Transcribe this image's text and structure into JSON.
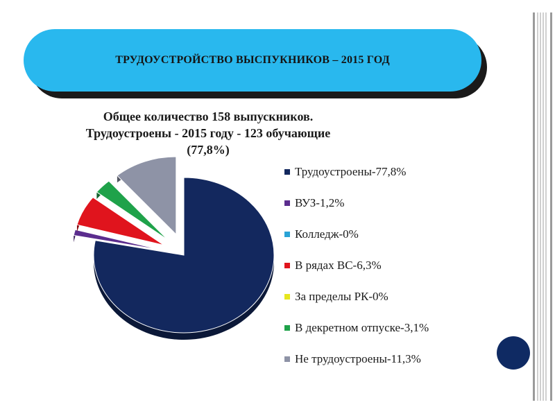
{
  "banner": {
    "title": "ТРУДОУСТРОЙСТВО ВЫСПУКНИКОВ – 2015 ГОД"
  },
  "chart_data": {
    "type": "pie",
    "title_lines": [
      "Общее количество 158 выпускников.",
      "Трудоустроены - 2015 году - 123 обучающие",
      "(77,8%)"
    ],
    "slices": [
      {
        "label": "Трудоустроены-77,8%",
        "value": 77.8,
        "color": "#13285e"
      },
      {
        "label": "ВУЗ-1,2%",
        "value": 1.2,
        "color": "#5b2d8e"
      },
      {
        "label": "Колледж-0%",
        "value": 0,
        "color": "#2aa3d6"
      },
      {
        "label": "В рядах ВС-6,3%",
        "value": 6.3,
        "color": "#e0141d"
      },
      {
        "label": "За пределы РК-0%",
        "value": 0,
        "color": "#e6e61e"
      },
      {
        "label": "В декретном отпуске-3,1%",
        "value": 3.1,
        "color": "#1fa24a"
      },
      {
        "label": "Не трудоустроены-11,3%",
        "value": 11.3,
        "color": "#8e93a6"
      }
    ],
    "legend_position": "right",
    "style": "3d-exploded"
  }
}
